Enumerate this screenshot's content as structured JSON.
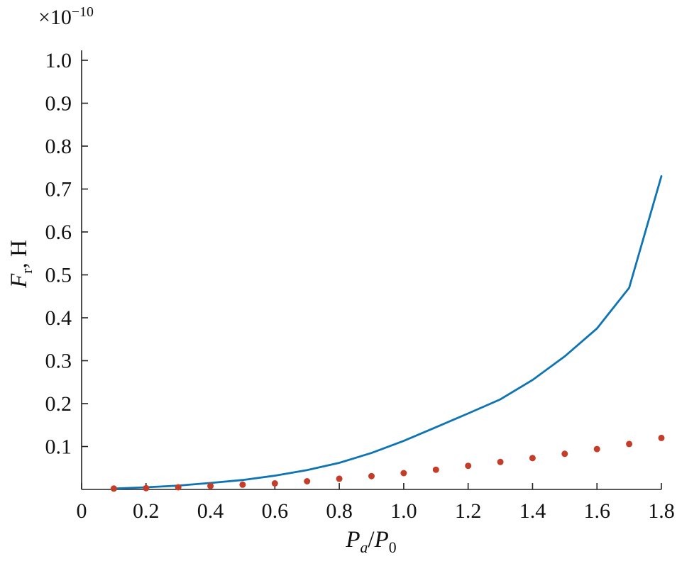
{
  "chart_data": {
    "type": "line",
    "title": "",
    "xlabel": "Pa/P0",
    "ylabel": "Fr, H",
    "y_axis_offset": "×10^−10",
    "xlim": [
      0,
      1.8
    ],
    "ylim": [
      0,
      1.0
    ],
    "grid": false,
    "legend": null,
    "x_ticks": [
      0,
      0.2,
      0.4,
      0.6,
      0.8,
      1.0,
      1.2,
      1.4,
      1.6,
      1.8
    ],
    "x_tick_labels": [
      "0",
      "0.2",
      "0.4",
      "0.6",
      "0.8",
      "1.0",
      "1.2",
      "1.4",
      "1.6",
      "1.8"
    ],
    "y_ticks": [
      0.1,
      0.2,
      0.3,
      0.4,
      0.5,
      0.6,
      0.7,
      0.8,
      0.9,
      1.0
    ],
    "y_tick_labels": [
      "0.1",
      "0.2",
      "0.3",
      "0.4",
      "0.5",
      "0.6",
      "0.7",
      "0.8",
      "0.9",
      "1.0"
    ],
    "x": [
      0.1,
      0.2,
      0.3,
      0.4,
      0.5,
      0.6,
      0.7,
      0.8,
      0.9,
      1.0,
      1.1,
      1.2,
      1.3,
      1.4,
      1.5,
      1.6,
      1.7,
      1.8
    ],
    "series": [
      {
        "name": "solid-curve",
        "type": "line",
        "color": "#0f74b3",
        "values": [
          0.002,
          0.005,
          0.009,
          0.015,
          0.022,
          0.032,
          0.045,
          0.062,
          0.085,
          0.113,
          0.145,
          0.177,
          0.21,
          0.255,
          0.31,
          0.375,
          0.47,
          0.73
        ]
      },
      {
        "name": "dotted-points",
        "type": "scatter",
        "color": "#c43d28",
        "values": [
          0.002,
          0.003,
          0.005,
          0.008,
          0.011,
          0.014,
          0.019,
          0.025,
          0.031,
          0.038,
          0.046,
          0.055,
          0.064,
          0.073,
          0.083,
          0.094,
          0.106,
          0.12
        ]
      }
    ]
  },
  "labels": {
    "offset_base": "×10",
    "offset_exp": "−10",
    "y_main": "F",
    "y_sub": "r",
    "y_rest": ", H",
    "x_p1": "P",
    "x_sub1": "a",
    "x_slash": "/",
    "x_p2": "P",
    "x_sub2": "0"
  }
}
